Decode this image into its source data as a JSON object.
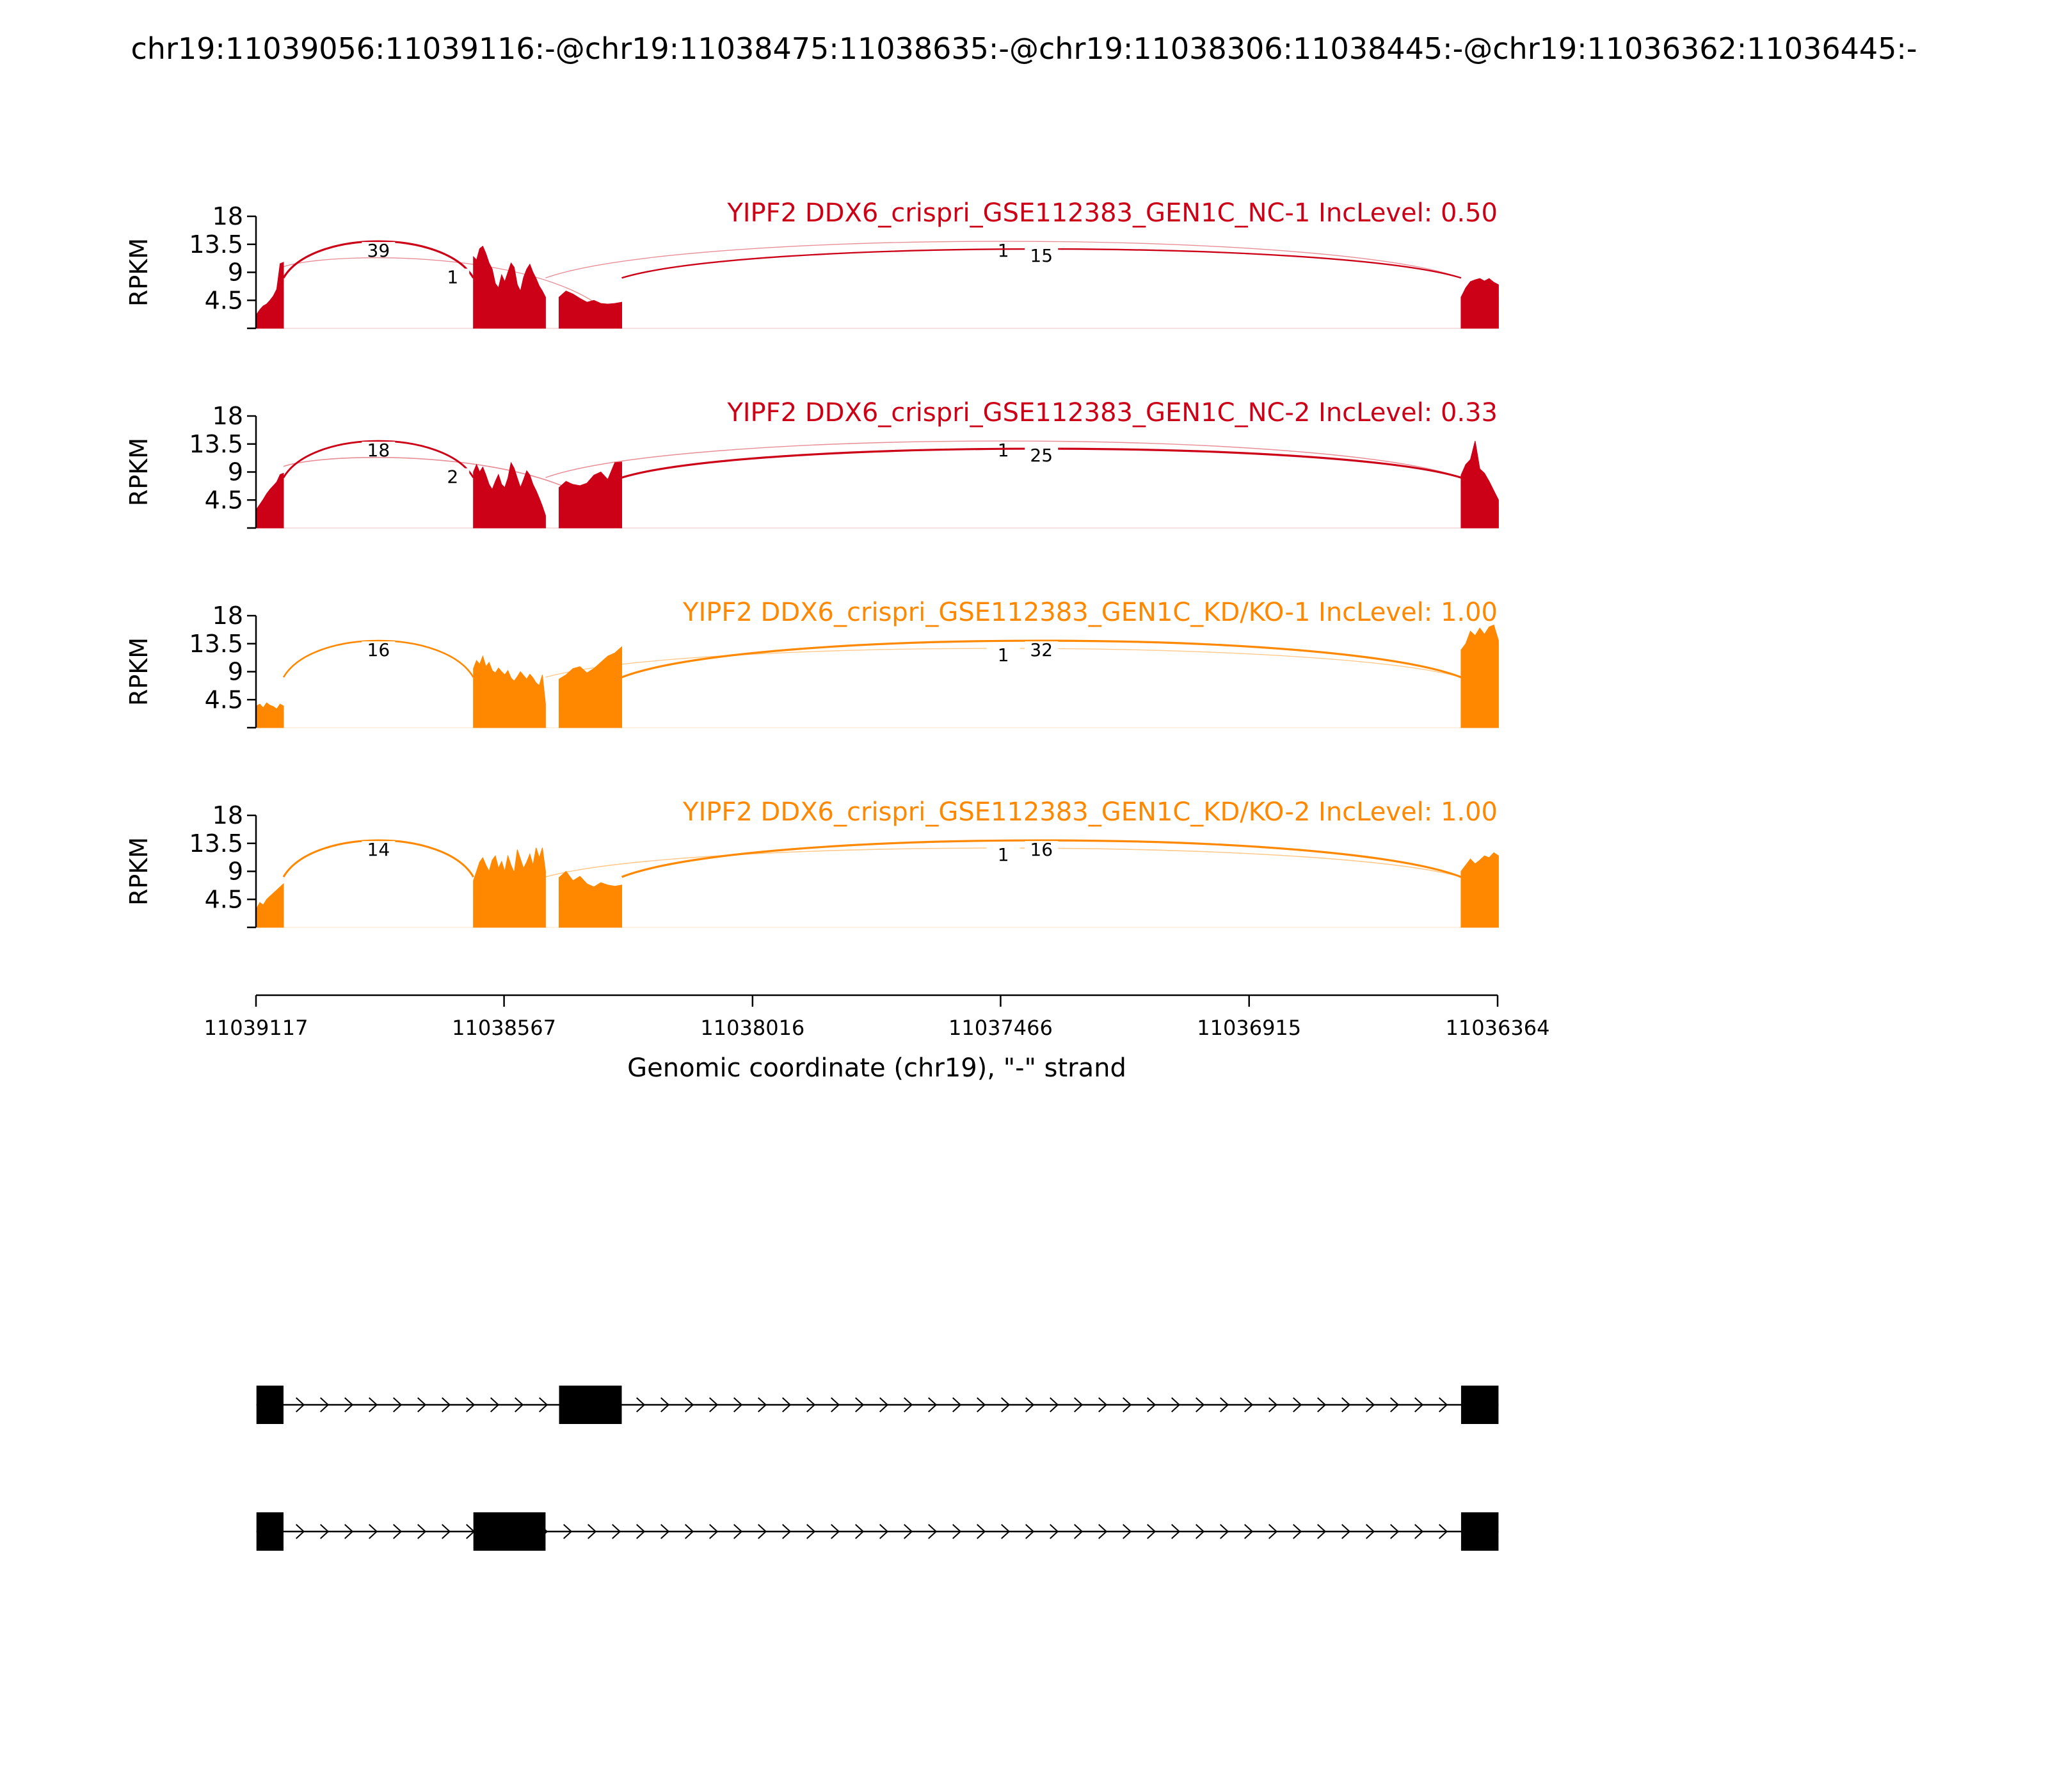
{
  "figure_title": "chr19:11039056:11039116:-@chr19:11038475:11038635:-@chr19:11038306:11038445:-@chr19:11036362:11036445:-",
  "chart_data": {
    "type": "area",
    "subtype": "sashimi",
    "strand": "-",
    "xlabel": "Genomic coordinate (chr19), \"-\" strand",
    "ylabel": "RPKM",
    "xlim": [
      11039117,
      11036364
    ],
    "xticks": [
      11039117,
      11038567,
      11038016,
      11037466,
      11036915,
      11036364
    ],
    "xtick_labels": [
      "11039117",
      "11038567",
      "11038016",
      "11037466",
      "11036915",
      "11036364"
    ],
    "ylim": [
      0,
      18
    ],
    "yticks": [
      4.5,
      9,
      13.5,
      18
    ],
    "ytick_labels": [
      "4.5",
      "9",
      "13.5",
      "18"
    ],
    "colors": {
      "NC": "#cc0016",
      "KD": "#ff8800"
    },
    "exons": [
      {
        "start": 11039116,
        "end": 11039056
      },
      {
        "start": 11038635,
        "end": 11038475
      },
      {
        "start": 11038445,
        "end": 11038306
      },
      {
        "start": 11036445,
        "end": 11036362
      }
    ],
    "series": [
      {
        "name": "YIPF2 DDX6_crispri_GSE112383_GEN1C_NC-1 IncLevel: 0.50",
        "color": "#cc0016",
        "coverage": [
          {
            "exon": 0,
            "profile": [
              2.2,
              3.0,
              3.6,
              3.9,
              4.5,
              5.2,
              6.3,
              10.4,
              10.6
            ]
          },
          {
            "exon": 1,
            "profile": [
              11.5,
              11.0,
              12.8,
              13.2,
              12.0,
              10.5,
              9.5,
              7.2,
              6.5,
              8.6,
              7.5,
              9.0,
              10.5,
              9.8,
              7.0,
              6.0,
              8.2,
              9.5,
              10.3,
              9.0,
              8.0,
              6.8,
              6.0,
              5.0
            ]
          },
          {
            "exon": 2,
            "profile": [
              5.0,
              6.0,
              5.5,
              4.8,
              4.2,
              4.5,
              4.0,
              3.9,
              4.0,
              4.2
            ]
          },
          {
            "exon": 3,
            "profile": [
              5.0,
              6.5,
              7.5,
              7.8,
              8.0,
              7.6,
              8.0,
              7.4,
              7.0
            ]
          }
        ],
        "junctions": [
          {
            "from": 11039056,
            "to": 11038635,
            "count": 39,
            "side": "above"
          },
          {
            "from": 11039056,
            "to": 11038306,
            "count": 1,
            "side": "below"
          },
          {
            "from": 11038475,
            "to": 11036445,
            "count": 1,
            "side": "above"
          },
          {
            "from": 11038306,
            "to": 11036445,
            "count": 15,
            "side": "above"
          }
        ]
      },
      {
        "name": "YIPF2 DDX6_crispri_GSE112383_GEN1C_NC-2 IncLevel: 0.33",
        "color": "#cc0016",
        "coverage": [
          {
            "exon": 0,
            "profile": [
              3.0,
              3.8,
              4.6,
              5.5,
              6.2,
              6.8,
              7.4,
              8.6,
              8.8
            ]
          },
          {
            "exon": 1,
            "profile": [
              9.0,
              10.2,
              9.0,
              9.8,
              8.5,
              7.0,
              6.2,
              7.5,
              8.6,
              7.0,
              6.5,
              8.0,
              10.5,
              9.6,
              8.0,
              6.5,
              7.8,
              9.2,
              8.5,
              7.0,
              6.0,
              4.8,
              3.5,
              2.0
            ]
          },
          {
            "exon": 2,
            "profile": [
              6.5,
              7.5,
              7.0,
              6.8,
              7.2,
              8.5,
              9.0,
              7.8,
              10.5,
              10.6
            ]
          },
          {
            "exon": 3,
            "profile": [
              8.5,
              10.2,
              11.0,
              14.0,
              9.5,
              8.8,
              7.5,
              6.0,
              4.5
            ]
          }
        ],
        "junctions": [
          {
            "from": 11039056,
            "to": 11038635,
            "count": 18,
            "side": "above"
          },
          {
            "from": 11039056,
            "to": 11038306,
            "count": 2,
            "side": "below"
          },
          {
            "from": 11038475,
            "to": 11036445,
            "count": 1,
            "side": "above"
          },
          {
            "from": 11038306,
            "to": 11036445,
            "count": 25,
            "side": "above"
          }
        ]
      },
      {
        "name": "YIPF2 DDX6_crispri_GSE112383_GEN1C_KD/KO-1 IncLevel: 1.00",
        "color": "#ff8800",
        "coverage": [
          {
            "exon": 0,
            "profile": [
              3.5,
              3.8,
              3.2,
              4.0,
              3.6,
              3.4,
              3.0,
              3.8,
              3.5
            ]
          },
          {
            "exon": 1,
            "profile": [
              9.5,
              10.8,
              10.2,
              11.5,
              9.8,
              10.5,
              9.2,
              8.8,
              9.6,
              9.0,
              8.5,
              9.2,
              8.0,
              7.5,
              8.2,
              9.0,
              8.4,
              7.8,
              8.6,
              8.0,
              7.2,
              6.8,
              8.5,
              3.8
            ]
          },
          {
            "exon": 2,
            "profile": [
              7.8,
              8.5,
              9.5,
              9.8,
              8.8,
              9.5,
              10.5,
              11.5,
              12.0,
              13.0
            ]
          },
          {
            "exon": 3,
            "profile": [
              12.5,
              13.5,
              15.5,
              14.8,
              16.0,
              15.0,
              16.2,
              16.5,
              14.0
            ]
          }
        ],
        "junctions": [
          {
            "from": 11039056,
            "to": 11038635,
            "count": 16,
            "side": "above"
          },
          {
            "from": 11038475,
            "to": 11036445,
            "count": 1,
            "side": "above"
          },
          {
            "from": 11038306,
            "to": 11036445,
            "count": 32,
            "side": "above"
          }
        ]
      },
      {
        "name": "YIPF2 DDX6_crispri_GSE112383_GEN1C_KD/KO-2 IncLevel: 1.00",
        "color": "#ff8800",
        "coverage": [
          {
            "exon": 0,
            "profile": [
              3.0,
              4.0,
              3.6,
              4.5,
              5.0,
              5.5,
              6.0,
              6.5,
              7.0
            ]
          },
          {
            "exon": 1,
            "profile": [
              7.5,
              9.0,
              10.5,
              11.2,
              10.0,
              9.0,
              10.8,
              11.5,
              9.5,
              10.6,
              9.0,
              11.5,
              10.0,
              8.8,
              12.5,
              11.0,
              9.5,
              10.5,
              11.8,
              10.0,
              12.8,
              11.2,
              12.8,
              9.0
            ]
          },
          {
            "exon": 2,
            "profile": [
              8.0,
              9.0,
              7.5,
              8.2,
              7.0,
              6.5,
              7.2,
              6.8,
              6.6,
              6.8
            ]
          },
          {
            "exon": 3,
            "profile": [
              9.0,
              10.0,
              11.0,
              10.2,
              10.8,
              11.5,
              11.2,
              12.0,
              11.5
            ]
          }
        ],
        "junctions": [
          {
            "from": 11039056,
            "to": 11038635,
            "count": 14,
            "side": "above"
          },
          {
            "from": 11038475,
            "to": 11036445,
            "count": 1,
            "side": "above"
          },
          {
            "from": 11038306,
            "to": 11036445,
            "count": 16,
            "side": "above"
          }
        ]
      }
    ],
    "isoforms": [
      {
        "exons": [
          0,
          2,
          3
        ]
      },
      {
        "exons": [
          0,
          1,
          3
        ]
      }
    ]
  }
}
